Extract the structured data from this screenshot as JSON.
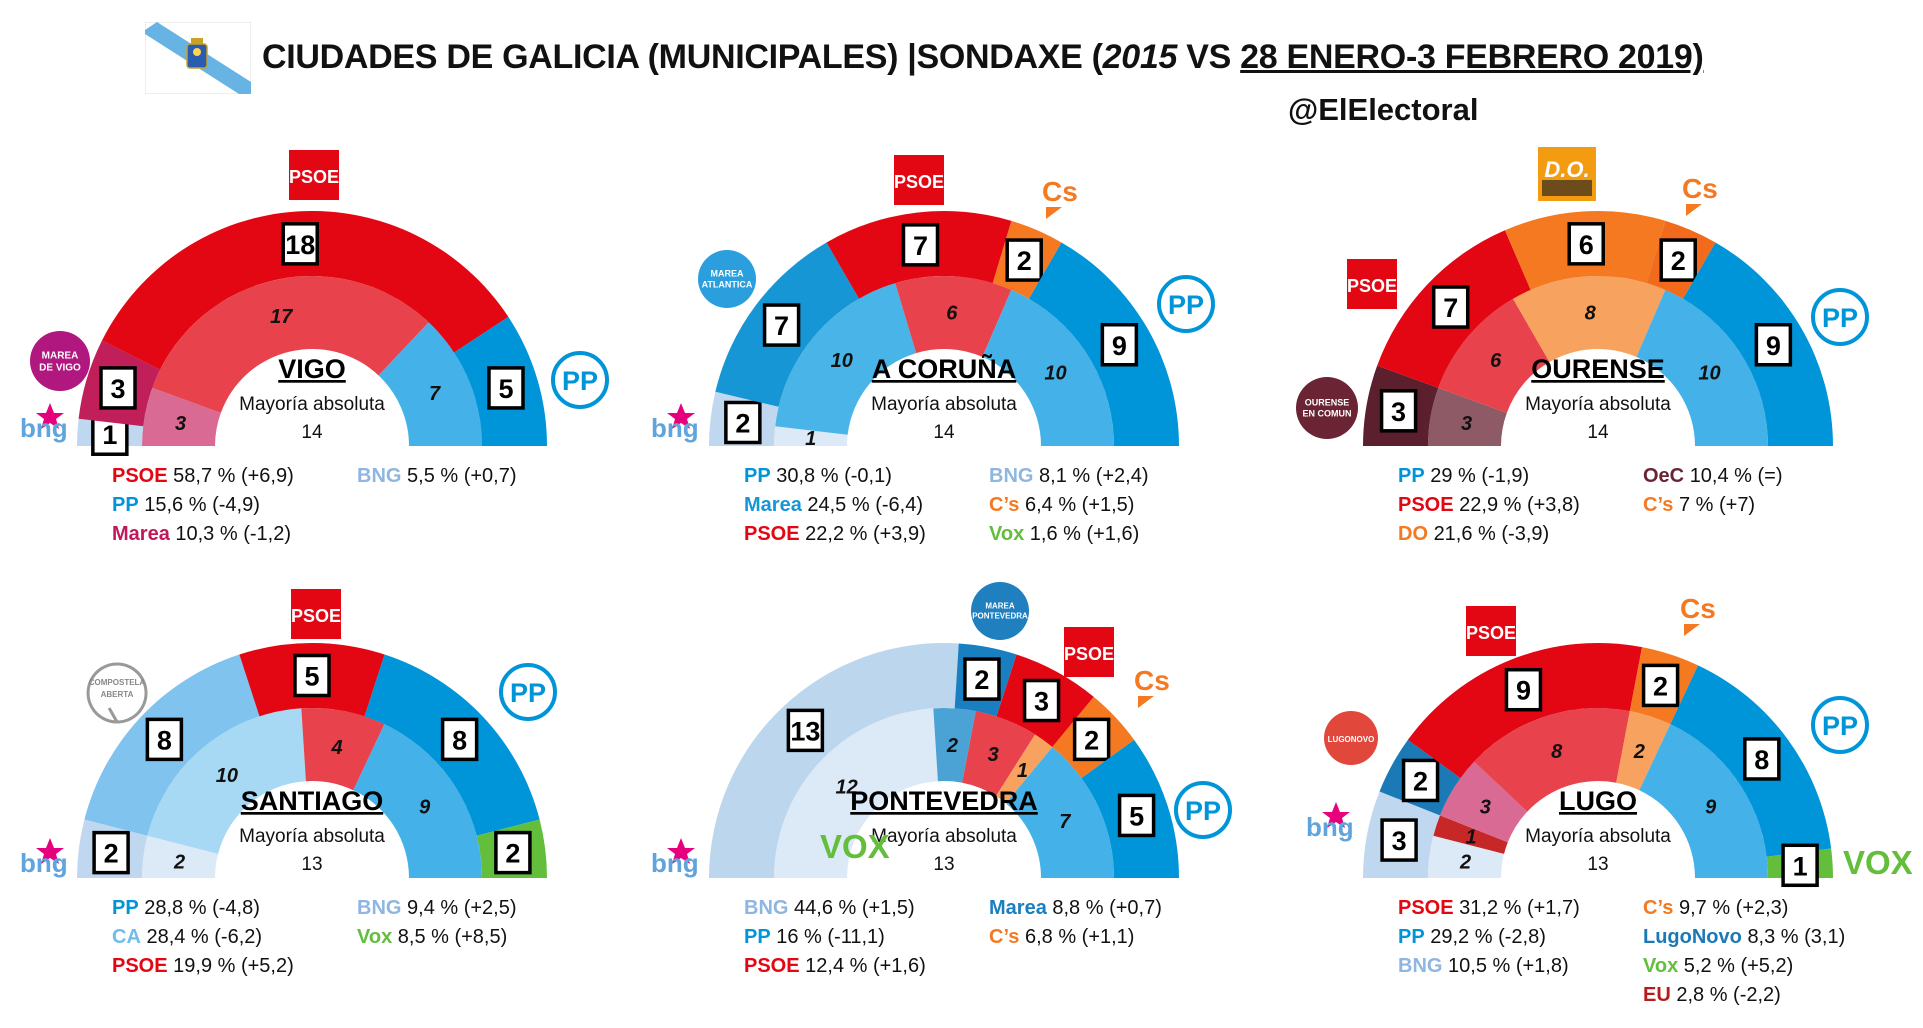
{
  "header": {
    "title_a": "CIUDADES DE GALICIA (MUNICIPALES) |SONDAXE (",
    "title_b": "2015",
    "title_c": " VS ",
    "title_d": "28 ENERO-3 FEBRERO 2019)",
    "handle": "@ElElectoral"
  },
  "party_colors": {
    "PSOE": "#e30613",
    "PP": "#0095d9",
    "BNG": "#a9c8e8",
    "Marea": "#c2185b",
    "Cs": "#f47920",
    "Vox": "#63be3c",
    "OeC": "#6b2434",
    "CA": "#9ccbee",
    "DO": "#f47920",
    "LugoNovo": "#1b7ab5",
    "EU": "#b71c1c"
  },
  "logos": {
    "psoe": "PSOE",
    "pp": "PP",
    "cs": "Cs",
    "vox": "VOX",
    "bng": "bng",
    "do": "D.O.",
    "marea_vigo": [
      "MAREA",
      "DE VIGO"
    ],
    "marea_atlantica": [
      "MAREA",
      "ATLANTICA"
    ],
    "ourense": [
      "OURENSE",
      "EN COMUN"
    ],
    "compostela": [
      "COMPOSTELA",
      "ABERTA"
    ],
    "marea_pontevedra": [
      "MAREA",
      "PONTEVEDRA"
    ],
    "lugonovo": "LUGONOVO"
  },
  "chart_data": [
    {
      "type": "semicircle-parliament",
      "city": "VIGO",
      "majority_label": "Mayoría absoluta",
      "majority": "14",
      "outer_2019": [
        {
          "party": "BNG",
          "seats": 1,
          "color": "#c0d8ef"
        },
        {
          "party": "Marea",
          "seats": 3,
          "color": "#c01f5a"
        },
        {
          "party": "PSOE",
          "seats": 18,
          "color": "#e30613"
        },
        {
          "party": "PP",
          "seats": 5,
          "color": "#0095d9"
        }
      ],
      "inner_2015": [
        {
          "party": "Marea",
          "seats": 3,
          "color": "#d96a94"
        },
        {
          "party": "PSOE",
          "seats": 17,
          "color": "#e8424c"
        },
        {
          "party": "PP",
          "seats": 7,
          "color": "#44b2e8"
        }
      ],
      "legend": [
        {
          "party": "PSOE",
          "value": "58,7 % (+6,9)",
          "color": "#e30613"
        },
        {
          "party": "PP",
          "value": "15,6 % (-4,9)",
          "color": "#0095d9"
        },
        {
          "party": "Marea",
          "value": "10,3 % (-1,2)",
          "color": "#c2185b"
        },
        {
          "party": "BNG",
          "value": "5,5 % (+0,7)",
          "color": "#8fb6e0"
        }
      ]
    },
    {
      "type": "semicircle-parliament",
      "city": "A CORUÑA",
      "majority_label": "Mayoría absoluta",
      "majority": "14",
      "outer_2019": [
        {
          "party": "BNG",
          "seats": 2,
          "color": "#c0d8ef"
        },
        {
          "party": "Marea",
          "seats": 7,
          "color": "#1796d5"
        },
        {
          "party": "PSOE",
          "seats": 7,
          "color": "#e30613"
        },
        {
          "party": "Cs",
          "seats": 2,
          "color": "#f47920"
        },
        {
          "party": "PP",
          "seats": 9,
          "color": "#0095d9"
        }
      ],
      "inner_2015": [
        {
          "party": "BNG",
          "seats": 1,
          "color": "#dce9f6"
        },
        {
          "party": "Marea",
          "seats": 10,
          "color": "#48b4e8"
        },
        {
          "party": "PSOE",
          "seats": 6,
          "color": "#e8424c"
        },
        {
          "party": "PP",
          "seats": 10,
          "color": "#44b2e8"
        }
      ],
      "legend": [
        {
          "party": "PP",
          "value": "30,8 % (-0,1)",
          "color": "#0095d9"
        },
        {
          "party": "Marea",
          "value": "24,5 % (-6,4)",
          "color": "#1796d5"
        },
        {
          "party": "PSOE",
          "value": "22,2 % (+3,9)",
          "color": "#e30613"
        },
        {
          "party": "BNG",
          "value": "8,1 % (+2,4)",
          "color": "#8fb6e0"
        },
        {
          "party": "C’s",
          "value": "6,4 % (+1,5)",
          "color": "#f47920"
        },
        {
          "party": "Vox",
          "value": "1,6 % (+1,6)",
          "color": "#63be3c"
        }
      ]
    },
    {
      "type": "semicircle-parliament",
      "city": "OURENSE",
      "majority_label": "Mayoría absoluta",
      "majority": "14",
      "outer_2019": [
        {
          "party": "OeC",
          "seats": 3,
          "color": "#5c1f2e"
        },
        {
          "party": "PSOE",
          "seats": 7,
          "color": "#e30613"
        },
        {
          "party": "DO",
          "seats": 6,
          "color": "#f47920"
        },
        {
          "party": "Cs",
          "seats": 2,
          "color": "#f26a1b"
        },
        {
          "party": "PP",
          "seats": 9,
          "color": "#0095d9"
        }
      ],
      "inner_2015": [
        {
          "party": "OeC",
          "seats": 3,
          "color": "#8e5a66"
        },
        {
          "party": "PSOE",
          "seats": 6,
          "color": "#e8424c"
        },
        {
          "party": "DO",
          "seats": 8,
          "color": "#f7a25e"
        },
        {
          "party": "PP",
          "seats": 10,
          "color": "#44b2e8"
        }
      ],
      "legend": [
        {
          "party": "PP",
          "value": "29 % (-1,9)",
          "color": "#0095d9"
        },
        {
          "party": "PSOE",
          "value": "22,9 % (+3,8)",
          "color": "#e30613"
        },
        {
          "party": "DO",
          "value": "21,6 % (-3,9)",
          "color": "#f47920"
        },
        {
          "party": "OeC",
          "value": "10,4 % (=)",
          "color": "#6b2434"
        },
        {
          "party": "C’s",
          "value": "7 % (+7)",
          "color": "#f47920"
        }
      ]
    },
    {
      "type": "semicircle-parliament",
      "city": "SANTIAGO",
      "majority_label": "Mayoría absoluta",
      "majority": "13",
      "outer_2019": [
        {
          "party": "BNG",
          "seats": 2,
          "color": "#c0d8ef"
        },
        {
          "party": "CA",
          "seats": 8,
          "color": "#7fc3ee"
        },
        {
          "party": "PSOE",
          "seats": 5,
          "color": "#e30613"
        },
        {
          "party": "PP",
          "seats": 8,
          "color": "#0095d9"
        },
        {
          "party": "Vox",
          "seats": 2,
          "color": "#63be3c"
        }
      ],
      "inner_2015": [
        {
          "party": "BNG",
          "seats": 2,
          "color": "#dce9f6"
        },
        {
          "party": "CA",
          "seats": 10,
          "color": "#a8d9f4"
        },
        {
          "party": "PSOE",
          "seats": 4,
          "color": "#e8424c"
        },
        {
          "party": "PP",
          "seats": 9,
          "color": "#44b2e8"
        }
      ],
      "legend": [
        {
          "party": "PP",
          "value": "28,8 % (-4,8)",
          "color": "#0095d9"
        },
        {
          "party": "CA",
          "value": "28,4 % (-6,2)",
          "color": "#6fbdea"
        },
        {
          "party": "PSOE",
          "value": "19,9 % (+5,2)",
          "color": "#e30613"
        },
        {
          "party": "BNG",
          "value": "9,4 % (+2,5)",
          "color": "#8fb6e0"
        },
        {
          "party": "Vox",
          "value": "8,5 % (+8,5)",
          "color": "#63be3c"
        }
      ]
    },
    {
      "type": "semicircle-parliament",
      "city": "PONTEVEDRA",
      "majority_label": "Mayoría absoluta",
      "majority": "13",
      "outer_2019": [
        {
          "party": "BNG",
          "seats": 13,
          "color": "#bcd6ee"
        },
        {
          "party": "Marea",
          "seats": 2,
          "color": "#1a7fc1"
        },
        {
          "party": "PSOE",
          "seats": 3,
          "color": "#e30613"
        },
        {
          "party": "Cs",
          "seats": 2,
          "color": "#f47920"
        },
        {
          "party": "PP",
          "seats": 5,
          "color": "#0095d9"
        }
      ],
      "inner_2015": [
        {
          "party": "BNG",
          "seats": 12,
          "color": "#dce9f6"
        },
        {
          "party": "Marea",
          "seats": 2,
          "color": "#4aa3d4"
        },
        {
          "party": "PSOE",
          "seats": 3,
          "color": "#e8424c"
        },
        {
          "party": "Cs",
          "seats": 1,
          "color": "#f7a25e"
        },
        {
          "party": "PP",
          "seats": 7,
          "color": "#44b2e8"
        }
      ],
      "legend": [
        {
          "party": "BNG",
          "value": "44,6 % (+1,5)",
          "color": "#8fb6e0"
        },
        {
          "party": "PP",
          "value": "16 % (-11,1)",
          "color": "#0095d9"
        },
        {
          "party": "PSOE",
          "value": "12,4 % (+1,6)",
          "color": "#e30613"
        },
        {
          "party": "Marea",
          "value": "8,8 % (+0,7)",
          "color": "#1a7fc1"
        },
        {
          "party": "C’s",
          "value": "6,8 % (+1,1)",
          "color": "#f47920"
        }
      ]
    },
    {
      "type": "semicircle-parliament",
      "city": "LUGO",
      "majority_label": "Mayoría absoluta",
      "majority": "13",
      "outer_2019": [
        {
          "party": "BNG",
          "seats": 3,
          "color": "#c0d8ef"
        },
        {
          "party": "LugoNovo",
          "seats": 2,
          "color": "#1b7ab5"
        },
        {
          "party": "PSOE",
          "seats": 9,
          "color": "#e30613"
        },
        {
          "party": "Cs",
          "seats": 2,
          "color": "#f47920"
        },
        {
          "party": "PP",
          "seats": 8,
          "color": "#0095d9"
        },
        {
          "party": "Vox",
          "seats": 1,
          "color": "#63be3c"
        }
      ],
      "inner_2015": [
        {
          "party": "BNG",
          "seats": 2,
          "color": "#dce9f6"
        },
        {
          "party": "EU",
          "seats": 1,
          "color": "#c62828"
        },
        {
          "party": "LugoNovo",
          "seats": 3,
          "color": "#d96a94"
        },
        {
          "party": "PSOE",
          "seats": 8,
          "color": "#e8424c"
        },
        {
          "party": "Cs",
          "seats": 2,
          "color": "#f7a25e"
        },
        {
          "party": "PP",
          "seats": 9,
          "color": "#44b2e8"
        }
      ],
      "legend": [
        {
          "party": "PSOE",
          "value": "31,2 % (+1,7)",
          "color": "#e30613"
        },
        {
          "party": "PP",
          "value": "29,2 % (-2,8)",
          "color": "#0095d9"
        },
        {
          "party": "BNG",
          "value": "10,5 % (+1,8)",
          "color": "#8fb6e0"
        },
        {
          "party": "C’s",
          "value": "9,7 % (+2,3)",
          "color": "#f47920"
        },
        {
          "party": "LugoNovo",
          "value": "8,3 % (3,1)",
          "color": "#1b7ab5"
        },
        {
          "party": "Vox",
          "value": "5,2 % (+5,2)",
          "color": "#63be3c"
        },
        {
          "party": "EU",
          "value": "2,8 % (-2,2)",
          "color": "#b71c1c"
        }
      ]
    }
  ]
}
